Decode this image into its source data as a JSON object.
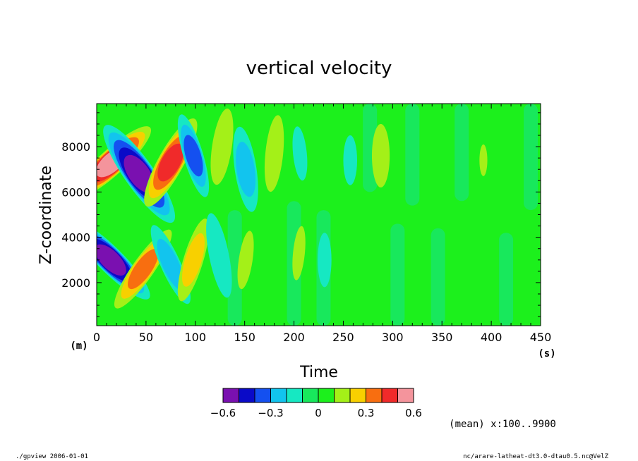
{
  "chart_data": {
    "type": "heatmap",
    "title": "vertical velocity",
    "xlabel": "Time",
    "ylabel": "Z-coordinate",
    "x_unit": "(s)",
    "y_unit": "(m)",
    "xlim": [
      0,
      450
    ],
    "ylim": [
      100,
      9900
    ],
    "x_ticks": [
      0,
      50,
      100,
      150,
      200,
      250,
      300,
      350,
      400,
      450
    ],
    "y_ticks": [
      2000,
      4000,
      6000,
      8000
    ],
    "colorbar": {
      "levels": [
        -0.6,
        -0.5,
        -0.4,
        -0.3,
        -0.2,
        -0.1,
        0,
        0.1,
        0.2,
        0.3,
        0.4,
        0.5,
        0.6
      ],
      "colors": [
        "#7a10b0",
        "#0a0ac8",
        "#1450f0",
        "#12c4ee",
        "#16e8c2",
        "#18e85c",
        "#1cf01c",
        "#a4f018",
        "#f8d000",
        "#f86e10",
        "#f02a2a",
        "#f4949c"
      ],
      "tick_labels": [
        "-0.6",
        "-0.3",
        "0",
        "0.3",
        "0.6"
      ]
    },
    "background_color": "#1cf01c",
    "features": [
      {
        "t": 15,
        "z": 7300,
        "rt": 13,
        "rz": 2300,
        "tilt": 2.2,
        "value": 0.5
      },
      {
        "t": 14,
        "z": 3000,
        "rt": 13,
        "rz": 2400,
        "tilt": -2.0,
        "value": -0.55
      },
      {
        "t": 43,
        "z": 6800,
        "rt": 15,
        "rz": 2600,
        "tilt": -1.4,
        "value": -0.55
      },
      {
        "t": 47,
        "z": 2600,
        "rt": 11,
        "rz": 2100,
        "tilt": 1.4,
        "value": 0.32
      },
      {
        "t": 75,
        "z": 7300,
        "rt": 13,
        "rz": 2200,
        "tilt": 1.1,
        "value": 0.45
      },
      {
        "t": 75,
        "z": 2800,
        "rt": 10,
        "rz": 1900,
        "tilt": -0.9,
        "value": -0.2
      },
      {
        "t": 98,
        "z": 7600,
        "rt": 10,
        "rz": 1900,
        "tilt": -0.6,
        "value": -0.3
      },
      {
        "t": 98,
        "z": 3000,
        "rt": 10,
        "rz": 1900,
        "tilt": 0.6,
        "value": 0.2
      },
      {
        "t": 127,
        "z": 8000,
        "rt": 10,
        "rz": 1700,
        "tilt": 0.3,
        "value": 0.12
      },
      {
        "t": 124,
        "z": 3200,
        "rt": 10,
        "rz": 1900,
        "tilt": -0.4,
        "value": -0.16
      },
      {
        "t": 151,
        "z": 7000,
        "rt": 11,
        "rz": 1900,
        "tilt": -0.3,
        "value": -0.22
      },
      {
        "t": 151,
        "z": 3000,
        "rt": 7,
        "rz": 1300,
        "tilt": 0.3,
        "value": 0.12
      },
      {
        "t": 180,
        "z": 7700,
        "rt": 9,
        "rz": 1700,
        "tilt": 0.2,
        "value": 0.16
      },
      {
        "t": 206,
        "z": 7700,
        "rt": 7,
        "rz": 1200,
        "tilt": -0.2,
        "value": -0.12
      },
      {
        "t": 205,
        "z": 3300,
        "rt": 6,
        "rz": 1200,
        "tilt": 0.2,
        "value": 0.12
      },
      {
        "t": 231,
        "z": 3000,
        "rt": 7,
        "rz": 1200,
        "tilt": 0,
        "value": -0.12
      },
      {
        "t": 257,
        "z": 7400,
        "rt": 7,
        "rz": 1100,
        "tilt": 0,
        "value": -0.1
      },
      {
        "t": 288,
        "z": 7600,
        "rt": 9,
        "rz": 1400,
        "tilt": 0,
        "value": 0.11
      },
      {
        "t": 392,
        "z": 7400,
        "rt": 4,
        "rz": 700,
        "tilt": 0,
        "value": 0.12
      }
    ],
    "zero_contour_bands": [
      {
        "t": 140,
        "z_from": 100,
        "z_to": 5200
      },
      {
        "t": 200,
        "z_from": 100,
        "z_to": 5600
      },
      {
        "t": 230,
        "z_from": 100,
        "z_to": 5200
      },
      {
        "t": 277,
        "z_from": 6000,
        "z_to": 9900
      },
      {
        "t": 305,
        "z_from": 100,
        "z_to": 4600
      },
      {
        "t": 320,
        "z_from": 5400,
        "z_to": 9900
      },
      {
        "t": 346,
        "z_from": 100,
        "z_to": 4400
      },
      {
        "t": 370,
        "z_from": 5600,
        "z_to": 9900
      },
      {
        "t": 415,
        "z_from": 100,
        "z_to": 4200
      },
      {
        "t": 440,
        "z_from": 5200,
        "z_to": 9900
      }
    ]
  },
  "footer": {
    "mean_note": "(mean) x:100..9900",
    "left_text": "./gpview  2006-01-01",
    "right_text": "nc/arare-latheat-dt3.0-dtau0.5.nc@VelZ"
  }
}
